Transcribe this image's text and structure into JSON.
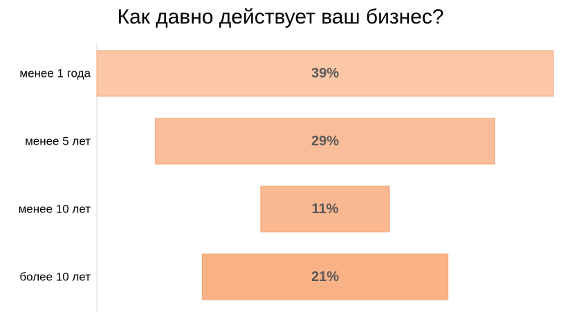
{
  "chart_data": {
    "type": "bar",
    "orientation": "horizontal",
    "style": "funnel",
    "title": "Как давно действует ваш бизнес?",
    "categories": [
      "менее 1 года",
      "менее 5 лет",
      "менее 10 лет",
      "более 10 лет"
    ],
    "values": [
      39,
      29,
      11,
      21
    ],
    "data_labels": [
      "39%",
      "29%",
      "11%",
      "21%"
    ],
    "unit": "%",
    "xlim": [
      0,
      39
    ],
    "grid": false,
    "legend": "none",
    "colors": {
      "bars": [
        "#fbc7a6",
        "#fabd9a",
        "#f9b890",
        "#f8b286"
      ],
      "bar_stroke": "#f3a67a",
      "data_label": "#595959",
      "category_label": "#000000",
      "axis_line": "#d9d9d9"
    }
  }
}
